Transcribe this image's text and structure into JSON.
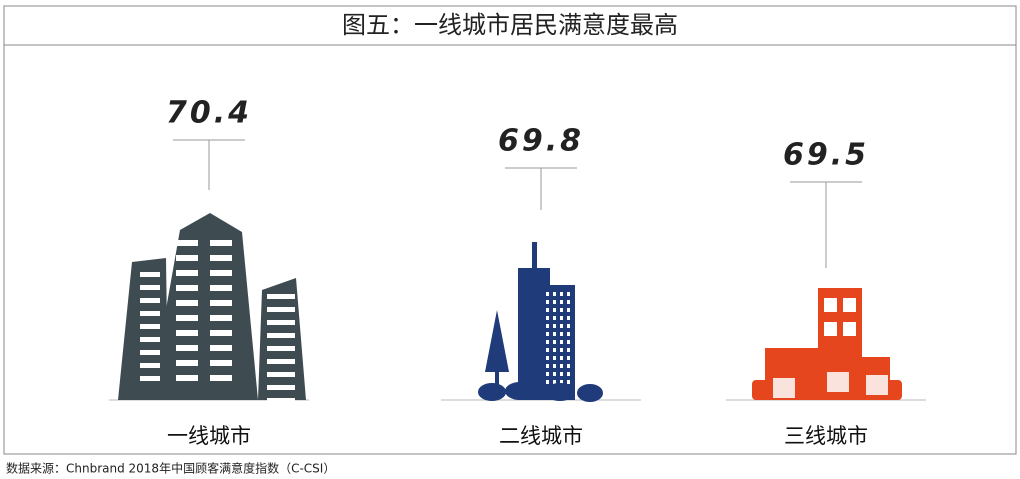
{
  "chart_data": {
    "type": "pictogram",
    "title": "图五：一线城市居民满意度最高",
    "categories": [
      "一线城市",
      "二线城市",
      "三线城市"
    ],
    "values": [
      70.4,
      69.8,
      69.5
    ],
    "colors": [
      "#3e4c51",
      "#1f3b7a",
      "#e5461e"
    ],
    "source": "数据来源：Chnbrand 2018年中国顾客满意度指数（C-CSI）"
  }
}
